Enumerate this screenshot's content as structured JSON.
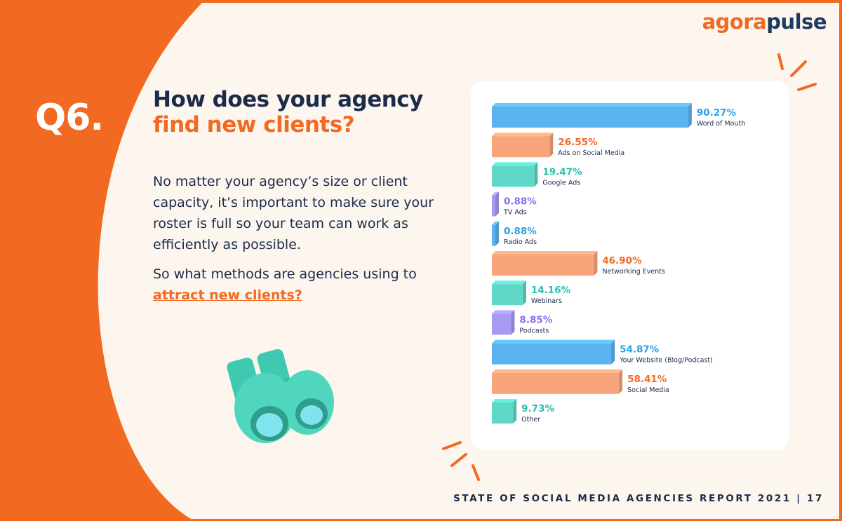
{
  "brand": {
    "part1": "agora",
    "part2": "pulse"
  },
  "question": {
    "number": "Q6.",
    "title_line1": "How does your agency",
    "title_line2": "find new clients?"
  },
  "body": {
    "paragraph1": "No matter your agency’s size or client capacity, it’s important to make sure your roster is full so your team can work as efficiently as possible.",
    "paragraph2_prefix": "So what methods are agencies using to",
    "link_text": "attract new clients?"
  },
  "footer": {
    "text": "STATE OF SOCIAL MEDIA AGENCIES REPORT 2021 | 17"
  },
  "colors": {
    "orange": "#f26a21",
    "navy": "#1b2b4a",
    "cream": "#fdf6ef",
    "blue": "#5ab4f0",
    "peach": "#f9a57c",
    "teal": "#5fd8c8",
    "purple": "#a89af0"
  },
  "chart_data": {
    "type": "bar",
    "orientation": "horizontal",
    "xlim": [
      0,
      100
    ],
    "categories": [
      "Word of Mouth",
      "Ads on Social Media",
      "Google Ads",
      "TV Ads",
      "Radio Ads",
      "Networking Events",
      "Webinars",
      "Podcasts",
      "Your Website (Blog/Podcast)",
      "Social Media",
      "Other"
    ],
    "values": [
      90.27,
      26.55,
      19.47,
      0.88,
      0.88,
      46.9,
      14.16,
      8.85,
      54.87,
      58.41,
      9.73
    ],
    "value_labels": [
      "90.27%",
      "26.55%",
      "19.47%",
      "0.88%",
      "0.88%",
      "46.90%",
      "14.16%",
      "8.85%",
      "54.87%",
      "58.41%",
      "9.73%"
    ],
    "bar_colors": [
      "#5ab4f0",
      "#f9a57c",
      "#5fd8c8",
      "#a89af0",
      "#5ab4f0",
      "#f9a57c",
      "#5fd8c8",
      "#a89af0",
      "#5ab4f0",
      "#f9a57c",
      "#5fd8c8"
    ],
    "label_colors": [
      "#2aa2e8",
      "#f26a21",
      "#27c2ae",
      "#8b6ff0",
      "#2aa2e8",
      "#f26a21",
      "#27c2ae",
      "#8b6ff0",
      "#2aa2e8",
      "#f26a21",
      "#27c2ae"
    ]
  }
}
